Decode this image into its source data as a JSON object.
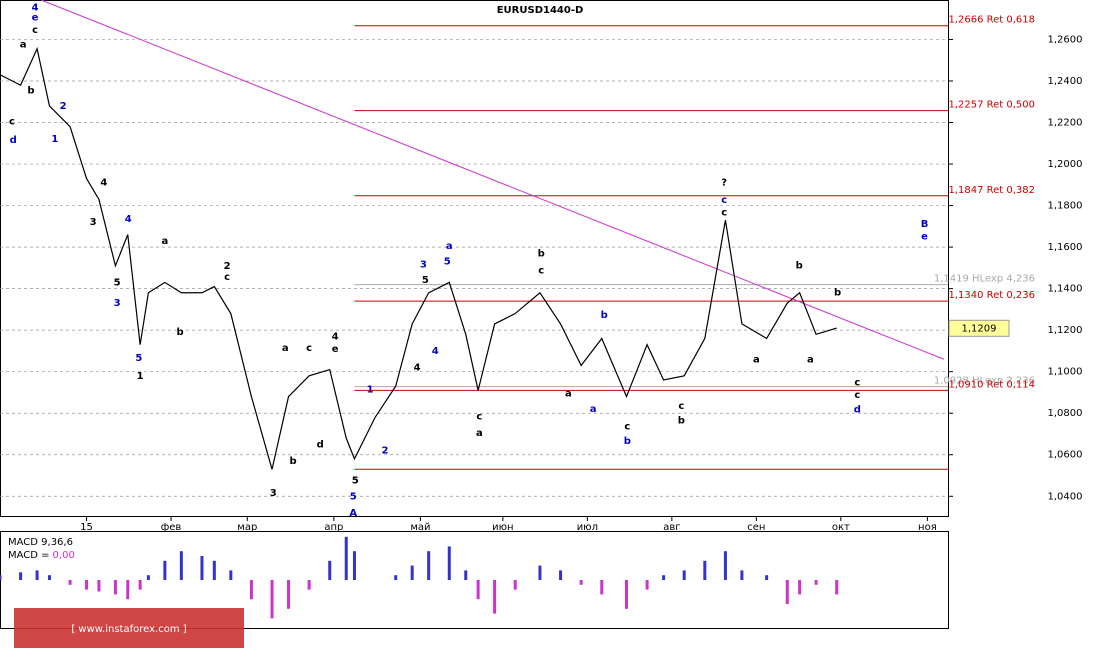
{
  "chart_data": {
    "type": "line",
    "title": "EURUSD1440-D",
    "xlim": [
      0,
      230
    ],
    "xticks": [
      {
        "value": 21,
        "label": "15"
      },
      {
        "value": 41.5,
        "label": "фев"
      },
      {
        "value": 60,
        "label": "мар"
      },
      {
        "value": 81,
        "label": "апр"
      },
      {
        "value": 102,
        "label": "май"
      },
      {
        "value": 122,
        "label": "июн"
      },
      {
        "value": 142.5,
        "label": "июл"
      },
      {
        "value": 163,
        "label": "авг"
      },
      {
        "value": 183.5,
        "label": "сен"
      },
      {
        "value": 204,
        "label": "окт"
      },
      {
        "value": 225,
        "label": "ноя"
      }
    ],
    "ylim": [
      1.0305,
      1.279
    ],
    "yticks": [
      {
        "value": 1.04,
        "label": "1,0400"
      },
      {
        "value": 1.06,
        "label": "1,0600"
      },
      {
        "value": 1.08,
        "label": "1,0800"
      },
      {
        "value": 1.1,
        "label": "1,1000"
      },
      {
        "value": 1.12,
        "label": "1,1200"
      },
      {
        "value": 1.14,
        "label": "1,1400"
      },
      {
        "value": 1.16,
        "label": "1,1600"
      },
      {
        "value": 1.18,
        "label": "1,1800"
      },
      {
        "value": 1.2,
        "label": "1,2000"
      },
      {
        "value": 1.22,
        "label": "1,2200"
      },
      {
        "value": 1.24,
        "label": "1,2400"
      },
      {
        "value": 1.26,
        "label": "1,2600"
      }
    ],
    "grid": true,
    "series": [
      {
        "color": "#000000",
        "x": [
          0,
          5,
          9,
          12,
          17,
          21,
          24,
          28,
          31,
          34,
          36,
          40,
          44,
          49,
          52,
          56,
          61,
          66,
          70,
          75,
          80,
          84,
          86,
          91,
          96,
          100,
          104,
          109,
          113,
          116,
          120,
          125,
          131,
          136,
          141,
          146,
          152,
          157,
          161,
          166,
          171,
          176,
          180,
          186,
          191,
          194,
          198,
          203
        ],
        "values": [
          1.243,
          1.238,
          1.2555,
          1.228,
          1.218,
          1.193,
          1.183,
          1.151,
          1.166,
          1.113,
          1.138,
          1.143,
          1.138,
          1.138,
          1.141,
          1.128,
          1.088,
          1.053,
          1.088,
          1.098,
          1.101,
          1.068,
          1.058,
          1.078,
          1.093,
          1.123,
          1.138,
          1.143,
          1.118,
          1.091,
          1.123,
          1.128,
          1.138,
          1.123,
          1.103,
          1.116,
          1.088,
          1.113,
          1.096,
          1.098,
          1.116,
          1.173,
          1.123,
          1.116,
          1.133,
          1.138,
          1.118,
          1.121
        ]
      }
    ],
    "price_label": {
      "value": 1.1209,
      "label": "1,1209"
    },
    "trendline": {
      "color": "#cc33cc",
      "x": [
        10,
        229
      ],
      "y": [
        1.279,
        1.106
      ]
    },
    "levels": [
      {
        "value": 1.2666,
        "label": "1,2666 Ret 0,618",
        "color": "#cc0000"
      },
      {
        "value": 1.2257,
        "label": "1,2257 Ret 0,500",
        "color": "#cc0000"
      },
      {
        "value": 1.1847,
        "label": "1,1847 Ret 0,382",
        "color": "#cc0000"
      },
      {
        "value": 1.1419,
        "label": "1,1419 HLexp 4,236",
        "color": "#aaaaaa"
      },
      {
        "value": 1.134,
        "label": "1,1340 Ret 0,236",
        "color": "#cc0000"
      },
      {
        "value": 1.0928,
        "label": "1,0928 HLexp 2,236",
        "color": "#aaaaaa"
      },
      {
        "value": 1.091,
        "label": "1,0910 Ret 0,114",
        "color": "#cc0000"
      },
      {
        "value": 1.053,
        "color": "#cc0000"
      }
    ],
    "levels_start": 86,
    "annotations": [
      {
        "text": "4",
        "x": 8.5,
        "y": 1.2755,
        "color": "#0000cc",
        "size": 15
      },
      {
        "text": "e",
        "x": 8.5,
        "y": 1.2705,
        "color": "#0000cc",
        "size": 12
      },
      {
        "text": "c",
        "x": 8.5,
        "y": 1.2645,
        "color": "#000000",
        "size": 11
      },
      {
        "text": "a",
        "x": 5.6,
        "y": 1.2575,
        "color": "#000000",
        "size": 11
      },
      {
        "text": "b",
        "x": 7.5,
        "y": 1.2355,
        "color": "#000000",
        "size": 11
      },
      {
        "text": "c",
        "x": 2.9,
        "y": 1.2205,
        "color": "#000000",
        "size": 11
      },
      {
        "text": "d",
        "x": 3.2,
        "y": 1.2115,
        "color": "#0000cc",
        "size": 12
      },
      {
        "text": "2",
        "x": 15.3,
        "y": 1.228,
        "color": "#0000cc",
        "size": 11
      },
      {
        "text": "1",
        "x": 13.3,
        "y": 1.212,
        "color": "#0000cc",
        "size": 11
      },
      {
        "text": "4",
        "x": 25.2,
        "y": 1.191,
        "color": "#000000",
        "size": 10
      },
      {
        "text": "3",
        "x": 22.6,
        "y": 1.172,
        "color": "#000000",
        "size": 10
      },
      {
        "text": "4",
        "x": 31.1,
        "y": 1.1735,
        "color": "#0000cc",
        "size": 11
      },
      {
        "text": "5",
        "x": 28.4,
        "y": 1.143,
        "color": "#000000",
        "size": 10
      },
      {
        "text": "3",
        "x": 28.4,
        "y": 1.133,
        "color": "#0000cc",
        "size": 11
      },
      {
        "text": "5",
        "x": 33.7,
        "y": 1.1065,
        "color": "#0000cc",
        "size": 11
      },
      {
        "text": "1",
        "x": 34,
        "y": 1.098,
        "color": "#000000",
        "size": 11
      },
      {
        "text": "a",
        "x": 40,
        "y": 1.163,
        "color": "#000000",
        "size": 12
      },
      {
        "text": "2",
        "x": 55.1,
        "y": 1.151,
        "color": "#000000",
        "size": 12
      },
      {
        "text": "c",
        "x": 55.1,
        "y": 1.1455,
        "color": "#000000",
        "size": 12
      },
      {
        "text": "b",
        "x": 43.7,
        "y": 1.119,
        "color": "#000000",
        "size": 12
      },
      {
        "text": "a",
        "x": 69.2,
        "y": 1.1115,
        "color": "#000000",
        "size": 12
      },
      {
        "text": "c",
        "x": 75,
        "y": 1.1115,
        "color": "#000000",
        "size": 12
      },
      {
        "text": "4",
        "x": 81.3,
        "y": 1.117,
        "color": "#000000",
        "size": 12
      },
      {
        "text": "e",
        "x": 81.3,
        "y": 1.111,
        "color": "#000000",
        "size": 12
      },
      {
        "text": "b",
        "x": 71.1,
        "y": 1.057,
        "color": "#000000",
        "size": 12
      },
      {
        "text": "d",
        "x": 77.7,
        "y": 1.065,
        "color": "#000000",
        "size": 12
      },
      {
        "text": "3",
        "x": 66.3,
        "y": 1.0415,
        "color": "#000000",
        "size": 10
      },
      {
        "text": "5",
        "x": 86.2,
        "y": 1.0475,
        "color": "#000000",
        "size": 11
      },
      {
        "text": "5",
        "x": 85.7,
        "y": 1.04,
        "color": "#0000cc",
        "size": 15
      },
      {
        "text": "A",
        "x": 85.7,
        "y": 1.032,
        "color": "#0000cc",
        "size": 15
      },
      {
        "text": "1",
        "x": 89.8,
        "y": 1.0915,
        "color": "#0000cc",
        "size": 11
      },
      {
        "text": "2",
        "x": 93.4,
        "y": 1.062,
        "color": "#0000cc",
        "size": 11
      },
      {
        "text": "3",
        "x": 102.7,
        "y": 1.1515,
        "color": "#0000cc",
        "size": 11
      },
      {
        "text": "5",
        "x": 108.5,
        "y": 1.153,
        "color": "#0000cc",
        "size": 11
      },
      {
        "text": "a",
        "x": 109,
        "y": 1.1605,
        "color": "#0000cc",
        "size": 12
      },
      {
        "text": "4",
        "x": 105.6,
        "y": 1.11,
        "color": "#0000cc",
        "size": 11
      },
      {
        "text": "5",
        "x": 103.2,
        "y": 1.1442,
        "color": "#000000",
        "size": 10
      },
      {
        "text": "4",
        "x": 101.2,
        "y": 1.102,
        "color": "#000000",
        "size": 10
      },
      {
        "text": "c",
        "x": 116.3,
        "y": 1.0785,
        "color": "#000000",
        "size": 10
      },
      {
        "text": "a",
        "x": 116.3,
        "y": 1.0705,
        "color": "#000000",
        "size": 12
      },
      {
        "text": "b",
        "x": 131.3,
        "y": 1.157,
        "color": "#000000",
        "size": 12
      },
      {
        "text": "c",
        "x": 131.3,
        "y": 1.1487,
        "color": "#000000",
        "size": 11
      },
      {
        "text": "b",
        "x": 146.6,
        "y": 1.1273,
        "color": "#0000cc",
        "size": 11
      },
      {
        "text": "c",
        "x": 152.2,
        "y": 1.0735,
        "color": "#000000",
        "size": 11
      },
      {
        "text": "b",
        "x": 152.2,
        "y": 1.0665,
        "color": "#0000cc",
        "size": 12
      },
      {
        "text": "a",
        "x": 137.9,
        "y": 1.0895,
        "color": "#000000",
        "size": 10
      },
      {
        "text": "a",
        "x": 143.9,
        "y": 1.082,
        "color": "#0000cc",
        "size": 11
      },
      {
        "text": "c",
        "x": 165.3,
        "y": 1.0834,
        "color": "#000000",
        "size": 10
      },
      {
        "text": "b",
        "x": 165.3,
        "y": 1.0765,
        "color": "#000000",
        "size": 12
      },
      {
        "text": "?",
        "x": 175.7,
        "y": 1.191,
        "color": "#000000",
        "size": 13
      },
      {
        "text": "c",
        "x": 175.7,
        "y": 1.1827,
        "color": "#0000cc",
        "size": 12
      },
      {
        "text": "c",
        "x": 175.7,
        "y": 1.1767,
        "color": "#000000",
        "size": 12
      },
      {
        "text": "b",
        "x": 193.9,
        "y": 1.1512,
        "color": "#000000",
        "size": 12
      },
      {
        "text": "a",
        "x": 183.5,
        "y": 1.1058,
        "color": "#000000",
        "size": 12
      },
      {
        "text": "a",
        "x": 196.6,
        "y": 1.1058,
        "color": "#000000",
        "size": 10
      },
      {
        "text": "b",
        "x": 203.2,
        "y": 1.1382,
        "color": "#000000",
        "size": 10
      },
      {
        "text": "B",
        "x": 224.3,
        "y": 1.1712,
        "color": "#0000cc",
        "size": 15
      },
      {
        "text": "e",
        "x": 224.3,
        "y": 1.165,
        "color": "#0000cc",
        "size": 12
      },
      {
        "text": "c",
        "x": 208,
        "y": 1.0948,
        "color": "#000000",
        "size": 10
      },
      {
        "text": "c",
        "x": 208,
        "y": 1.0888,
        "color": "#000000",
        "size": 11
      },
      {
        "text": "d",
        "x": 208,
        "y": 1.0818,
        "color": "#0000cc",
        "size": 12
      }
    ],
    "macd": {
      "title": "MACD 9,36,6",
      "label": "MACD =",
      "value_text": "0,00",
      "pos_color": "#3333cc",
      "neg_color": "#cc33cc",
      "ylim": [
        -50,
        50
      ],
      "values": [
        5,
        8,
        10,
        5,
        -5,
        -10,
        -12,
        -15,
        -20,
        -10,
        5,
        20,
        30,
        25,
        20,
        10,
        -20,
        -40,
        -30,
        -10,
        20,
        45,
        30,
        0,
        5,
        15,
        30,
        35,
        10,
        -20,
        -35,
        -10,
        15,
        10,
        -5,
        -15,
        -30,
        -10,
        5,
        10,
        20,
        30,
        10,
        5,
        -25,
        -15,
        -5,
        -15
      ]
    },
    "watermark": "[ www.instaforex.com ]"
  }
}
